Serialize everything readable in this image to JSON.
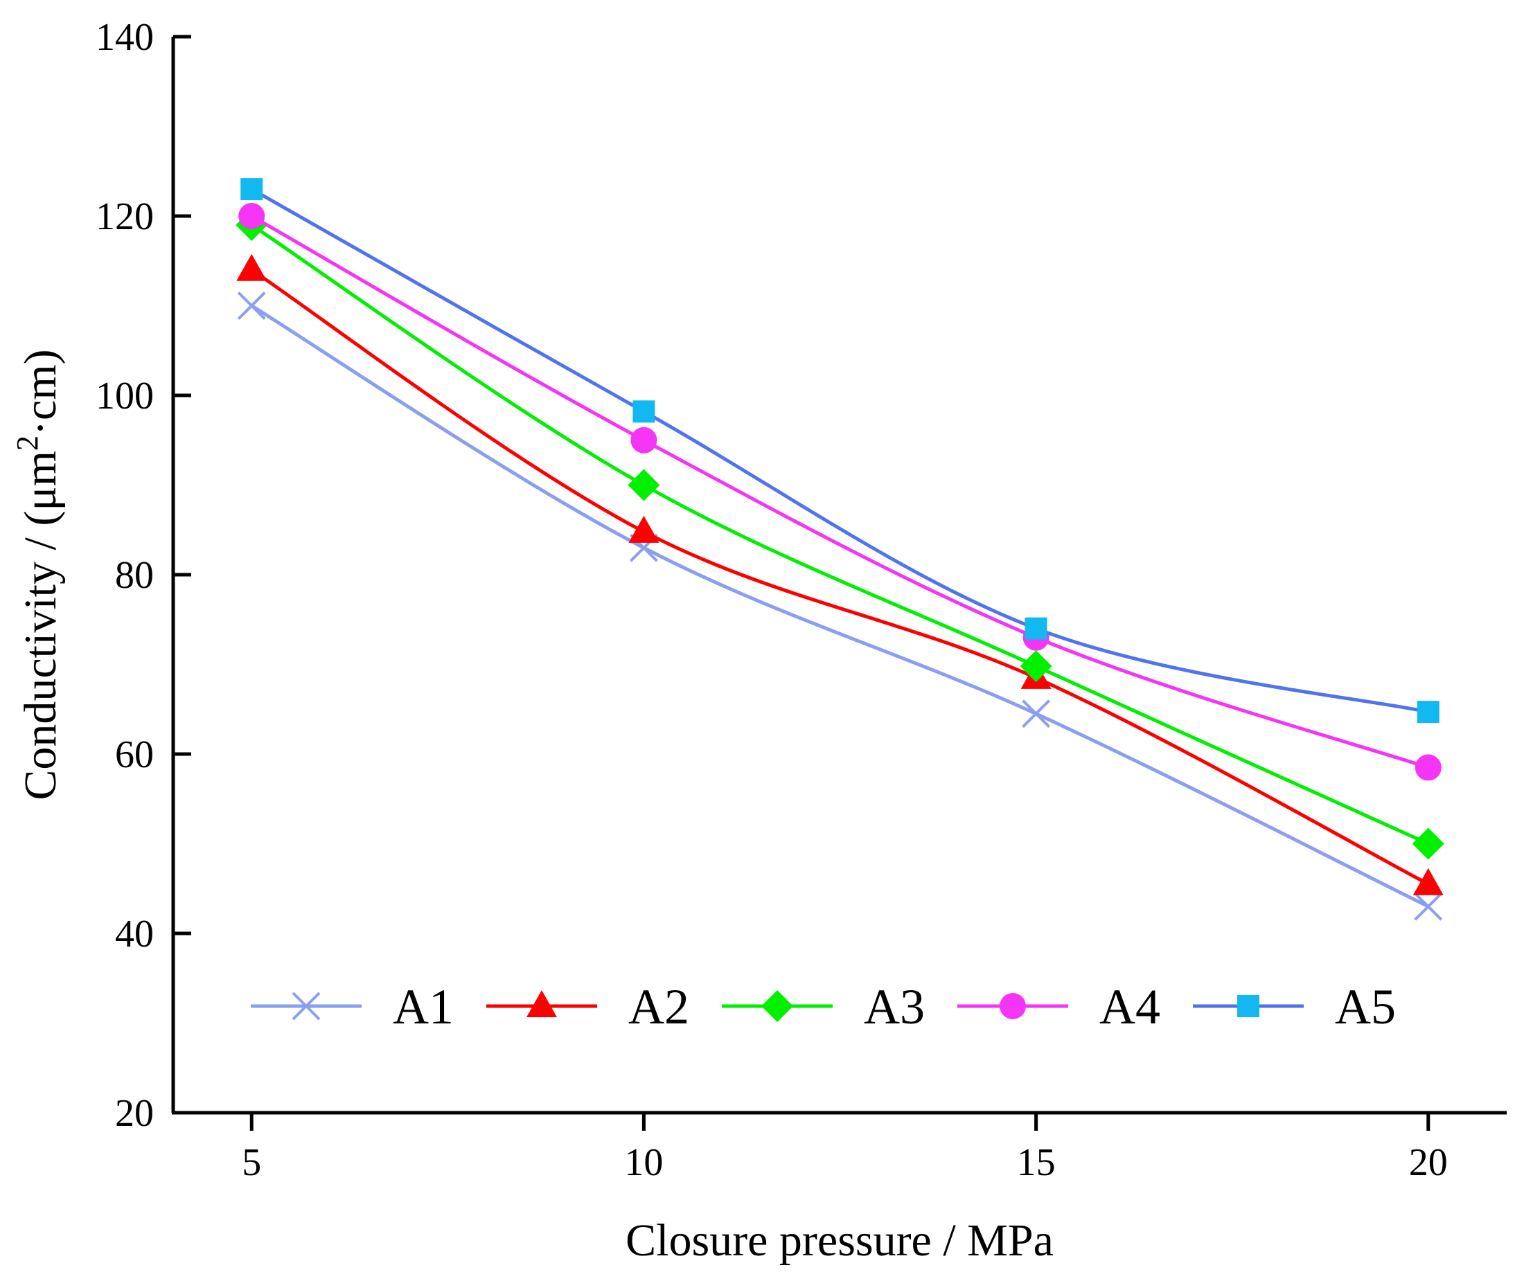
{
  "chart_data": {
    "type": "line",
    "xlabel": "Closure pressure / MPa",
    "ylabel": "Conductivity / (μm²·cm)",
    "ylabel_parts": {
      "before": "Conductivity / (μm",
      "sup": "2",
      "after": "·cm)"
    },
    "x": [
      5,
      10,
      15,
      20
    ],
    "x_ticks": [
      "5",
      "10",
      "15",
      "20"
    ],
    "y_ticks": [
      "20",
      "40",
      "60",
      "80",
      "100",
      "120",
      "140"
    ],
    "xlim": [
      4,
      21
    ],
    "ylim": [
      20,
      140
    ],
    "grid": false,
    "legend_position": "inside-bottom",
    "series": [
      {
        "name": "A1",
        "values": [
          110,
          83,
          64.5,
          43
        ],
        "color": "#8a9ff0",
        "marker": "x"
      },
      {
        "name": "A2",
        "values": [
          114,
          84.8,
          68.5,
          45.5
        ],
        "color": "#ff0000",
        "marker": "triangle"
      },
      {
        "name": "A3",
        "values": [
          119,
          90,
          69.8,
          50
        ],
        "color": "#00f000",
        "marker": "diamond"
      },
      {
        "name": "A4",
        "values": [
          120,
          95,
          73,
          58.5
        ],
        "color": "#f535f5",
        "marker": "circle"
      },
      {
        "name": "A5",
        "values": [
          123,
          98.2,
          74,
          64.7
        ],
        "color": "#5073ee",
        "marker_color": "#12b8f0",
        "marker": "square"
      }
    ]
  }
}
